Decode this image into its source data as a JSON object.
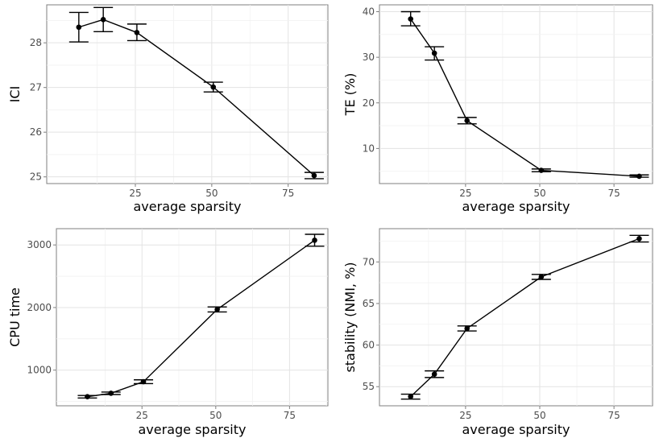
{
  "chart_data": [
    {
      "type": "line",
      "xlabel": "average sparsity",
      "ylabel": "ICI",
      "xlim": [
        -4,
        88
      ],
      "ylim": [
        24.85,
        28.85
      ],
      "xticks": [
        25,
        50,
        75
      ],
      "yticks": [
        25,
        26,
        27,
        28
      ],
      "grid": true,
      "points": [
        {
          "x": 6.5,
          "y": 28.35,
          "lo": 28.02,
          "hi": 28.68
        },
        {
          "x": 14.5,
          "y": 28.52,
          "lo": 28.25,
          "hi": 28.79
        },
        {
          "x": 25.5,
          "y": 28.23,
          "lo": 28.05,
          "hi": 28.42
        },
        {
          "x": 50.5,
          "y": 27.01,
          "lo": 26.9,
          "hi": 27.12
        },
        {
          "x": 83.5,
          "y": 25.03,
          "lo": 24.96,
          "hi": 25.1
        }
      ]
    },
    {
      "type": "line",
      "xlabel": "average sparsity",
      "ylabel": "TE (%)",
      "xlim": [
        -4,
        88
      ],
      "ylim": [
        2.3,
        41.5
      ],
      "xticks": [
        25,
        50,
        75
      ],
      "yticks": [
        10,
        20,
        30,
        40
      ],
      "grid": true,
      "points": [
        {
          "x": 6.5,
          "y": 38.4,
          "lo": 36.9,
          "hi": 40.0
        },
        {
          "x": 14.5,
          "y": 30.9,
          "lo": 29.4,
          "hi": 32.3
        },
        {
          "x": 25.5,
          "y": 16.1,
          "lo": 15.4,
          "hi": 16.8
        },
        {
          "x": 50.5,
          "y": 5.2,
          "lo": 4.9,
          "hi": 5.5
        },
        {
          "x": 83.5,
          "y": 3.9,
          "lo": 3.7,
          "hi": 4.2
        }
      ]
    },
    {
      "type": "line",
      "xlabel": "average sparsity",
      "ylabel": "CPU time",
      "xlim": [
        -4,
        88
      ],
      "ylim": [
        430,
        3260
      ],
      "xticks": [
        25,
        50,
        75
      ],
      "yticks": [
        1000,
        2000,
        3000
      ],
      "grid": true,
      "points": [
        {
          "x": 6.5,
          "y": 575,
          "lo": 555,
          "hi": 595
        },
        {
          "x": 14.5,
          "y": 630,
          "lo": 610,
          "hi": 650
        },
        {
          "x": 25.5,
          "y": 815,
          "lo": 785,
          "hi": 845
        },
        {
          "x": 50.5,
          "y": 1970,
          "lo": 1930,
          "hi": 2010
        },
        {
          "x": 83.5,
          "y": 3075,
          "lo": 2980,
          "hi": 3170
        }
      ]
    },
    {
      "type": "line",
      "xlabel": "average sparsity",
      "ylabel": "stability (NMI, %)",
      "xlim": [
        -4,
        88
      ],
      "ylim": [
        52.7,
        74.0
      ],
      "xticks": [
        25,
        50,
        75
      ],
      "yticks": [
        55,
        60,
        65,
        70
      ],
      "grid": true,
      "points": [
        {
          "x": 6.5,
          "y": 53.8,
          "lo": 53.5,
          "hi": 54.1
        },
        {
          "x": 14.5,
          "y": 56.5,
          "lo": 56.1,
          "hi": 56.9
        },
        {
          "x": 25.5,
          "y": 62.0,
          "lo": 61.7,
          "hi": 62.3
        },
        {
          "x": 50.5,
          "y": 68.2,
          "lo": 67.9,
          "hi": 68.5
        },
        {
          "x": 83.5,
          "y": 72.8,
          "lo": 72.4,
          "hi": 73.2
        }
      ]
    }
  ]
}
